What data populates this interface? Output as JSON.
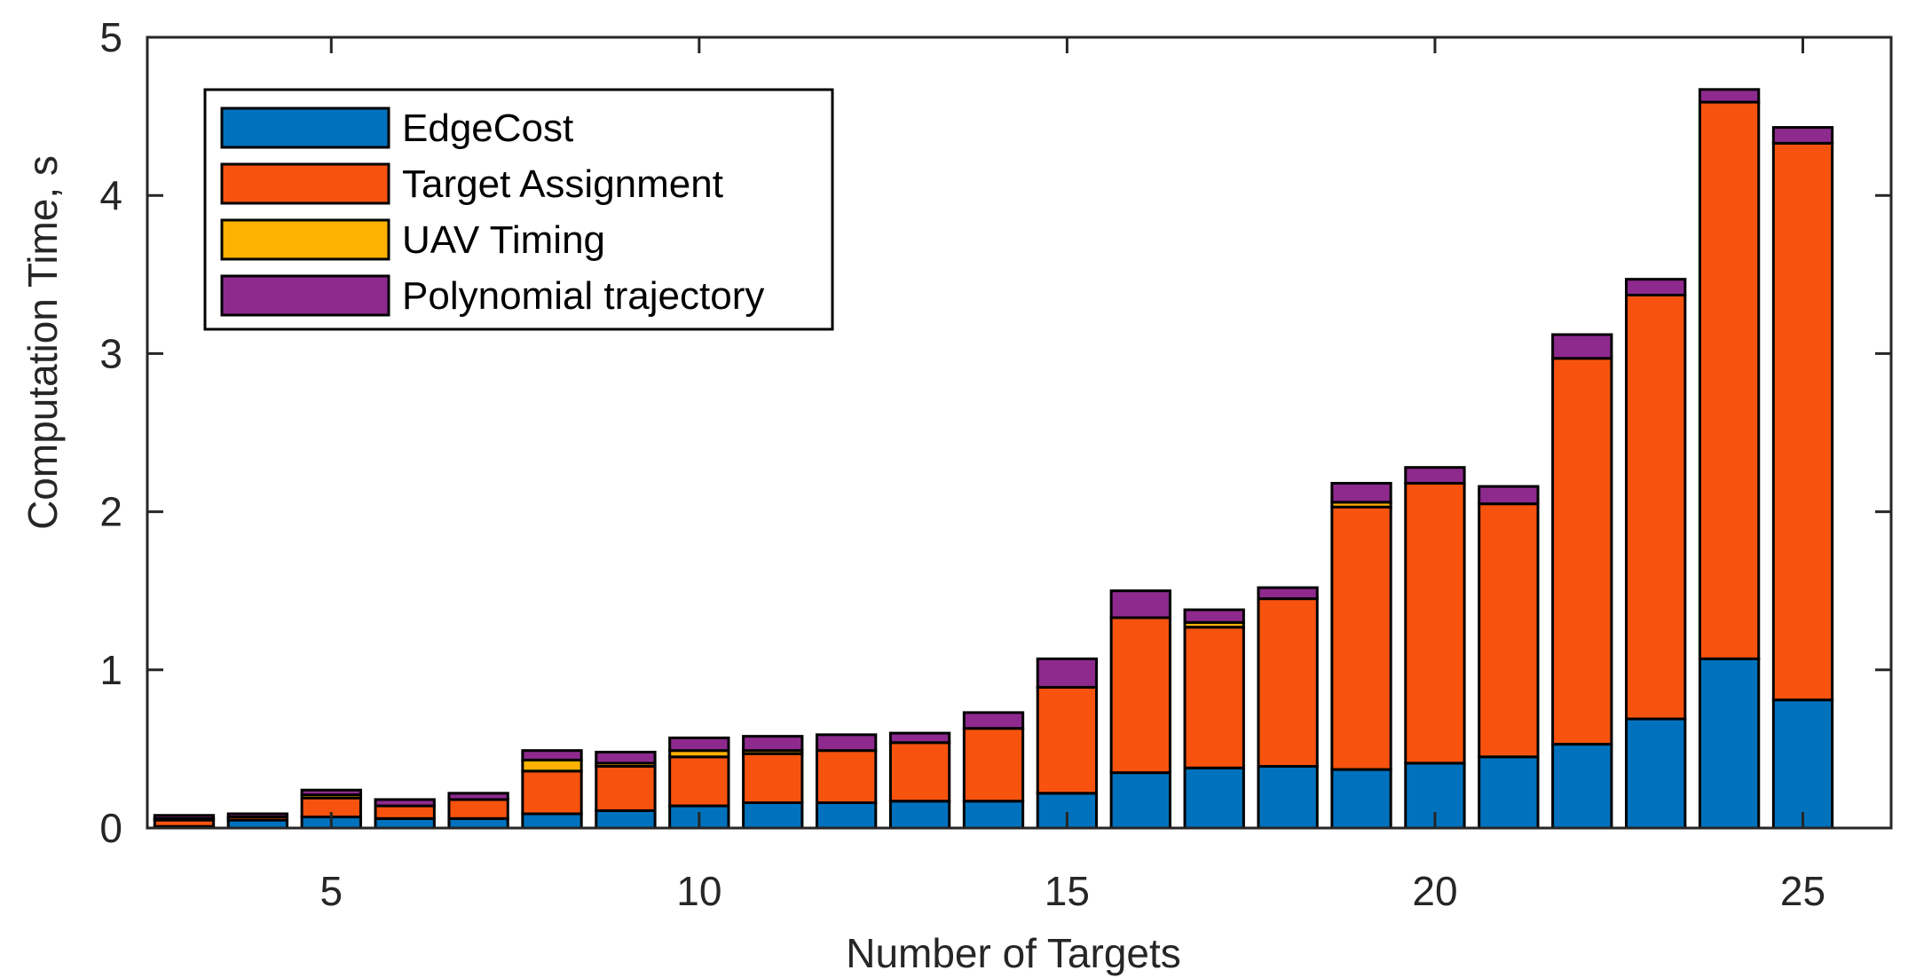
{
  "chart_data": {
    "type": "bar",
    "stacked": true,
    "title": "",
    "xlabel": "Number of Targets",
    "ylabel": "Computation Time, s",
    "xlim": [
      2.5,
      26.2
    ],
    "ylim": [
      0,
      5
    ],
    "xticks": [
      5,
      10,
      15,
      20,
      25
    ],
    "yticks": [
      0,
      1,
      2,
      3,
      4,
      5
    ],
    "grid": false,
    "legend_position": "top-left",
    "categories": [
      3,
      4,
      5,
      6,
      7,
      8,
      9,
      10,
      11,
      12,
      13,
      14,
      15,
      16,
      17,
      18,
      19,
      20,
      21,
      22,
      23,
      24,
      25
    ],
    "series": [
      {
        "name": "EdgeCost",
        "color": "#0072BD",
        "values": [
          0.01,
          0.05,
          0.07,
          0.06,
          0.06,
          0.09,
          0.11,
          0.14,
          0.16,
          0.16,
          0.17,
          0.17,
          0.22,
          0.35,
          0.38,
          0.39,
          0.37,
          0.41,
          0.45,
          0.53,
          0.69,
          1.07,
          0.81
        ]
      },
      {
        "name": "Target Assignment",
        "color": "#F7530F",
        "values": [
          0.04,
          0.02,
          0.12,
          0.08,
          0.12,
          0.27,
          0.28,
          0.31,
          0.31,
          0.33,
          0.37,
          0.46,
          0.67,
          0.98,
          0.89,
          1.06,
          1.66,
          1.77,
          1.6,
          2.44,
          2.68,
          3.52,
          3.52
        ]
      },
      {
        "name": "UAV Timing",
        "color": "#FDB100",
        "values": [
          0.01,
          0.0,
          0.02,
          0.0,
          0.0,
          0.07,
          0.02,
          0.04,
          0.02,
          0.0,
          0.0,
          0.0,
          0.0,
          0.0,
          0.03,
          0.0,
          0.03,
          0.0,
          0.0,
          0.0,
          0.0,
          0.0,
          0.0
        ]
      },
      {
        "name": "Polynomial trajectory",
        "color": "#8E2A8E",
        "values": [
          0.02,
          0.02,
          0.03,
          0.04,
          0.04,
          0.06,
          0.07,
          0.08,
          0.09,
          0.1,
          0.06,
          0.1,
          0.18,
          0.17,
          0.08,
          0.07,
          0.12,
          0.1,
          0.11,
          0.15,
          0.1,
          0.08,
          0.1
        ]
      }
    ]
  }
}
